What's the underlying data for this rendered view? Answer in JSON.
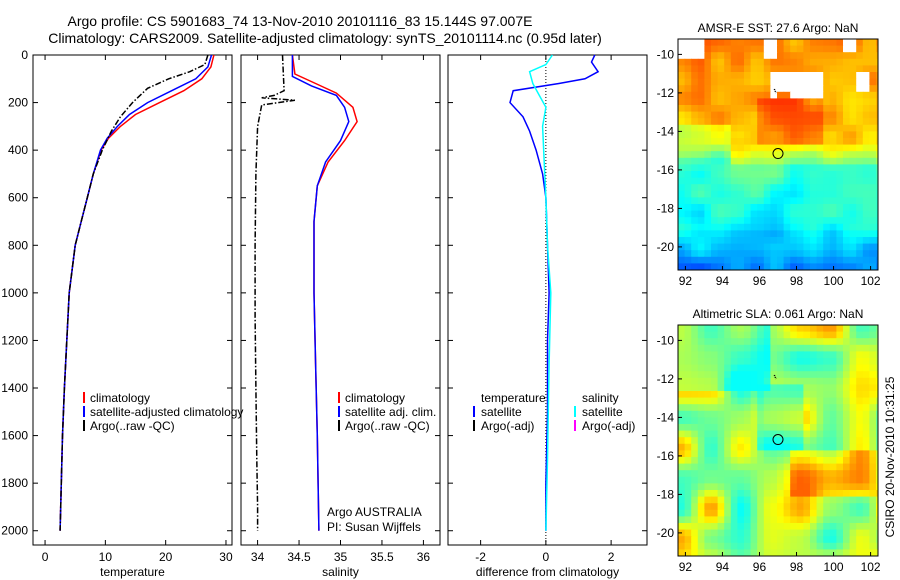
{
  "header": {
    "line1": "Argo profile: CS 5901683_74 13-Nov-2010 20101116_83 15.144S 97.007E",
    "line2": "Climatology: CARS2009. Satellite-adjusted climatology: synTS_20101114.nc (0.95d later)"
  },
  "side_text": "CSIRO 20-Nov-2010 10:31:25",
  "colors": {
    "climatology": "#ff0000",
    "satellite": "#0000ff",
    "argo": "#000000",
    "sat_salinity": "#00ffff",
    "argo_adj_salinity": "#ff00ff"
  },
  "chart_data": [
    {
      "type": "line",
      "id": "temperature",
      "xlabel": "temperature",
      "xlim": [
        -2,
        31
      ],
      "ylim": [
        0,
        2060
      ],
      "xticks": [
        "0",
        "10",
        "20",
        "30"
      ],
      "xtick_values": [
        0,
        10,
        20,
        30
      ],
      "yticks": [
        "0",
        "200",
        "400",
        "600",
        "800",
        "1000",
        "1200",
        "1400",
        "1600",
        "1800",
        "2000"
      ],
      "ytick_values": [
        0,
        200,
        400,
        600,
        800,
        1000,
        1200,
        1400,
        1600,
        1800,
        2000
      ],
      "legend": [
        "climatology",
        "satellite-adjusted climatology",
        "Argo(..raw -QC)"
      ],
      "series": [
        {
          "name": "climatology",
          "color": "#ff0000",
          "style": "solid",
          "x": [
            28.0,
            27.5,
            26.0,
            23.0,
            19.0,
            15.0,
            12.5,
            10.5,
            9.3,
            8.0,
            7.0,
            6.0,
            5.0,
            4.5,
            4.0,
            3.6,
            3.2,
            2.9,
            2.7,
            2.5
          ],
          "y": [
            0,
            50,
            100,
            150,
            200,
            250,
            300,
            350,
            400,
            500,
            600,
            700,
            800,
            900,
            1000,
            1200,
            1400,
            1600,
            1800,
            2000
          ]
        },
        {
          "name": "satellite-adjusted climatology",
          "color": "#0000ff",
          "style": "solid",
          "x": [
            27.6,
            27.0,
            25.0,
            21.0,
            17.0,
            14.0,
            12.0,
            10.3,
            9.2,
            8.0,
            7.0,
            6.0,
            5.0,
            4.5,
            4.0,
            3.6,
            3.2,
            2.9,
            2.7,
            2.5
          ],
          "y": [
            0,
            50,
            100,
            150,
            200,
            250,
            300,
            350,
            400,
            500,
            600,
            700,
            800,
            900,
            1000,
            1200,
            1400,
            1600,
            1800,
            2000
          ]
        },
        {
          "name": "Argo(..raw -QC)",
          "color": "#000000",
          "style": "dashdot",
          "x": [
            27.0,
            26.5,
            24.0,
            20.5,
            17.0,
            14.5,
            12.5,
            11.0,
            9.5,
            8.0,
            7.0,
            6.0,
            5.0,
            4.5,
            4.0,
            3.6,
            3.2,
            2.9,
            2.7,
            2.5
          ],
          "y": [
            0,
            40,
            70,
            100,
            140,
            200,
            260,
            320,
            400,
            500,
            600,
            700,
            800,
            900,
            1000,
            1200,
            1400,
            1600,
            1800,
            2000
          ]
        }
      ]
    },
    {
      "type": "line",
      "id": "salinity",
      "xlabel": "salinity",
      "xlim": [
        33.8,
        36.2
      ],
      "ylim": [
        0,
        2060
      ],
      "xticks": [
        "34",
        "34.5",
        "35",
        "35.5",
        "36"
      ],
      "xtick_values": [
        34,
        34.5,
        35,
        35.5,
        36
      ],
      "legend": [
        "climatology",
        "satellite adj. clim.",
        "Argo(..raw -QC)"
      ],
      "annotation": [
        "Argo AUSTRALIA",
        "PI: Susan Wijffels"
      ],
      "series": [
        {
          "name": "climatology",
          "color": "#ff0000",
          "style": "solid",
          "x": [
            34.42,
            34.45,
            34.7,
            34.95,
            35.15,
            35.2,
            35.05,
            34.85,
            34.72,
            34.68,
            34.68,
            34.7,
            34.72,
            34.73,
            34.74
          ],
          "y": [
            0,
            80,
            120,
            160,
            220,
            280,
            360,
            450,
            550,
            700,
            1000,
            1300,
            1600,
            1800,
            2000
          ]
        },
        {
          "name": "satellite adj. clim.",
          "color": "#0000ff",
          "style": "solid",
          "x": [
            34.42,
            34.42,
            34.65,
            34.95,
            35.05,
            35.1,
            35.0,
            34.82,
            34.72,
            34.68,
            34.68,
            34.7,
            34.72,
            34.73,
            34.74
          ],
          "y": [
            0,
            90,
            130,
            170,
            220,
            280,
            360,
            450,
            550,
            700,
            1000,
            1300,
            1600,
            1800,
            2000
          ]
        },
        {
          "name": "Argo(..raw -QC)",
          "color": "#000000",
          "style": "dashdot",
          "x": [
            34.3,
            34.32,
            34.2,
            34.05,
            34.45,
            34.05,
            34.0,
            33.98,
            33.97,
            33.97,
            33.98,
            33.99,
            34.0,
            34.0
          ],
          "y": [
            0,
            150,
            170,
            180,
            190,
            210,
            300,
            500,
            800,
            1100,
            1400,
            1700,
            1900,
            2000
          ]
        }
      ]
    },
    {
      "type": "line",
      "id": "difference",
      "xlabel": "difference from climatology",
      "xlim": [
        -3,
        3.1
      ],
      "ylim": [
        0,
        2060
      ],
      "xticks": [
        "-2",
        "0",
        "2"
      ],
      "xtick_values": [
        -2,
        0,
        2
      ],
      "legend_left_title": "temperature",
      "legend_left": [
        "satellite",
        "Argo(-adj)"
      ],
      "legend_right_title": "salinity",
      "legend_right": [
        "satellite",
        "Argo(-adj)"
      ],
      "series": [
        {
          "name": "temperature satellite",
          "color": "#0000ff",
          "style": "solid",
          "x": [
            1.5,
            1.4,
            1.6,
            1.2,
            0.4,
            -1.0,
            -1.1,
            -0.7,
            -0.5,
            -0.3,
            -0.1,
            0.0,
            0.05,
            0.1,
            0.05,
            0.05,
            0.0,
            0.0
          ],
          "y": [
            0,
            30,
            70,
            100,
            120,
            150,
            200,
            260,
            320,
            400,
            500,
            600,
            800,
            1000,
            1200,
            1500,
            1800,
            2000
          ]
        },
        {
          "name": "salinity satellite",
          "color": "#00ffff",
          "style": "solid",
          "x": [
            0.2,
            0.0,
            -0.5,
            -0.4,
            -0.2,
            0.0,
            -0.1,
            -0.05,
            0.0,
            0.05,
            0.15,
            0.1,
            0.05,
            0.0
          ],
          "y": [
            0,
            40,
            70,
            120,
            170,
            220,
            300,
            450,
            600,
            800,
            1000,
            1300,
            1700,
            2000
          ]
        }
      ]
    },
    {
      "type": "heatmap",
      "id": "sst-map",
      "title": "AMSR-E SST: 27.6 Argo: NaN",
      "xlim": [
        91.6,
        102.4
      ],
      "ylim": [
        -21.2,
        -9.2
      ],
      "xticks": [
        "92",
        "94",
        "96",
        "98",
        "100",
        "102"
      ],
      "xtick_values": [
        92,
        94,
        96,
        98,
        100,
        102
      ],
      "yticks": [
        "-10",
        "-12",
        "-14",
        "-16",
        "-18",
        "-20"
      ],
      "ytick_values": [
        -10,
        -12,
        -14,
        -16,
        -18,
        -20
      ],
      "marker_circle": [
        97.0,
        -15.15
      ],
      "marker_track": [
        [
          96.8,
          -11.8
        ],
        [
          96.9,
          -12.0
        ]
      ]
    },
    {
      "type": "heatmap",
      "id": "sla-map",
      "title": "Altimetric SLA: 0.061 Argo: NaN",
      "xlim": [
        91.6,
        102.4
      ],
      "ylim": [
        -21.2,
        -9.2
      ],
      "xticks": [
        "92",
        "94",
        "96",
        "98",
        "100",
        "102"
      ],
      "xtick_values": [
        92,
        94,
        96,
        98,
        100,
        102
      ],
      "yticks": [
        "-10",
        "-12",
        "-14",
        "-16",
        "-18",
        "-20"
      ],
      "ytick_values": [
        -10,
        -12,
        -14,
        -16,
        -18,
        -20
      ],
      "marker_circle": [
        97.0,
        -15.15
      ],
      "marker_track": [
        [
          96.8,
          -11.8
        ],
        [
          96.9,
          -12.0
        ]
      ]
    }
  ]
}
